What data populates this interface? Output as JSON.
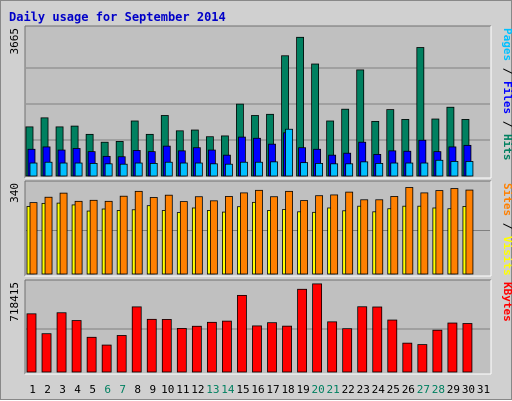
{
  "chart_data": {
    "type": "bar",
    "title": "Daily usage for September 2014",
    "days": [
      "1",
      "2",
      "3",
      "4",
      "5",
      "6",
      "7",
      "8",
      "9",
      "10",
      "11",
      "12",
      "13",
      "14",
      "15",
      "16",
      "17",
      "18",
      "19",
      "20",
      "21",
      "22",
      "23",
      "24",
      "25",
      "26",
      "27",
      "28",
      "29",
      "30",
      "31"
    ],
    "weekend_days": [
      "6",
      "7",
      "13",
      "14",
      "20",
      "21",
      "27",
      "28"
    ],
    "panels": [
      {
        "name": "hits-panel",
        "ymax_label": "3665",
        "ymax": 3665,
        "right_labels": [
          {
            "text": "Pages",
            "color": "#00c0ff"
          },
          {
            "text": " / ",
            "color": "#000000"
          },
          {
            "text": "Files",
            "color": "#0000ff"
          },
          {
            "text": " / ",
            "color": "#000000"
          },
          {
            "text": "Hits",
            "color": "#008060"
          }
        ],
        "series": [
          {
            "name": "Hits",
            "color": "#008060",
            "values": [
              1250,
              1480,
              1250,
              1270,
              1060,
              860,
              880,
              1400,
              1060,
              1540,
              1150,
              1170,
              1000,
              1020,
              1830,
              1540,
              1570,
              3060,
              3530,
              2850,
              1400,
              1700,
              2700,
              1390,
              1690,
              1440,
              3270,
              1450,
              1750,
              1440,
              null
            ]
          },
          {
            "name": "Files",
            "color": "#0000ff",
            "values": [
              680,
              740,
              660,
              700,
              620,
              500,
              490,
              650,
              620,
              760,
              640,
              720,
              660,
              530,
              990,
              960,
              810,
              1100,
              720,
              680,
              530,
              580,
              860,
              550,
              640,
              630,
              910,
              620,
              740,
              780,
              null
            ]
          },
          {
            "name": "Pages",
            "color": "#00c0ff",
            "values": [
              330,
              350,
              330,
              330,
              320,
              310,
              300,
              330,
              320,
              350,
              330,
              330,
              310,
              300,
              350,
              350,
              360,
              1190,
              340,
              320,
              310,
              310,
              360,
              320,
              330,
              330,
              330,
              400,
              370,
              370,
              null
            ]
          }
        ]
      },
      {
        "name": "visits-panel",
        "ymax_label": "340",
        "ymax": 340,
        "right_labels": [
          {
            "text": "Sites",
            "color": "#ff8000"
          },
          {
            "text": " / ",
            "color": "#000000"
          },
          {
            "text": "Visits",
            "color": "#ffff00"
          }
        ],
        "series": [
          {
            "name": "Visits",
            "color": "#ffff00",
            "values": [
              264,
              276,
              277,
              270,
              246,
              254,
              248,
              251,
              267,
              248,
              240,
              258,
              248,
              242,
              263,
              280,
              248,
              252,
              243,
              241,
              258,
              247,
              265,
              243,
              255,
              265,
              265,
              258,
              255,
              264,
              null
            ]
          },
          {
            "name": "Sites",
            "color": "#ff8000",
            "values": [
              279,
              300,
              316,
              284,
              288,
              284,
              304,
              323,
              299,
              308,
              283,
              302,
              286,
              303,
              317,
              327,
              302,
              323,
              287,
              306,
              309,
              320,
              290,
              290,
              303,
              338,
              317,
              326,
              334,
              328,
              null
            ]
          }
        ]
      },
      {
        "name": "kbytes-panel",
        "ymax_label": "718415",
        "ymax": 718415,
        "right_labels": [
          {
            "text": "KBytes",
            "color": "#ff0000"
          }
        ],
        "series": [
          {
            "name": "KBytes",
            "color": "#ff0000",
            "values": [
              486000,
              320000,
              495000,
              430000,
              290000,
              225000,
              305000,
              544000,
              440000,
              439000,
              364000,
              382000,
              415000,
              425000,
              640000,
              385000,
              412000,
              383000,
              691000,
              736000,
              419000,
              362000,
              545000,
              543000,
              434000,
              241000,
              229000,
              349000,
              409000,
              405000,
              null
            ]
          }
        ]
      }
    ]
  }
}
